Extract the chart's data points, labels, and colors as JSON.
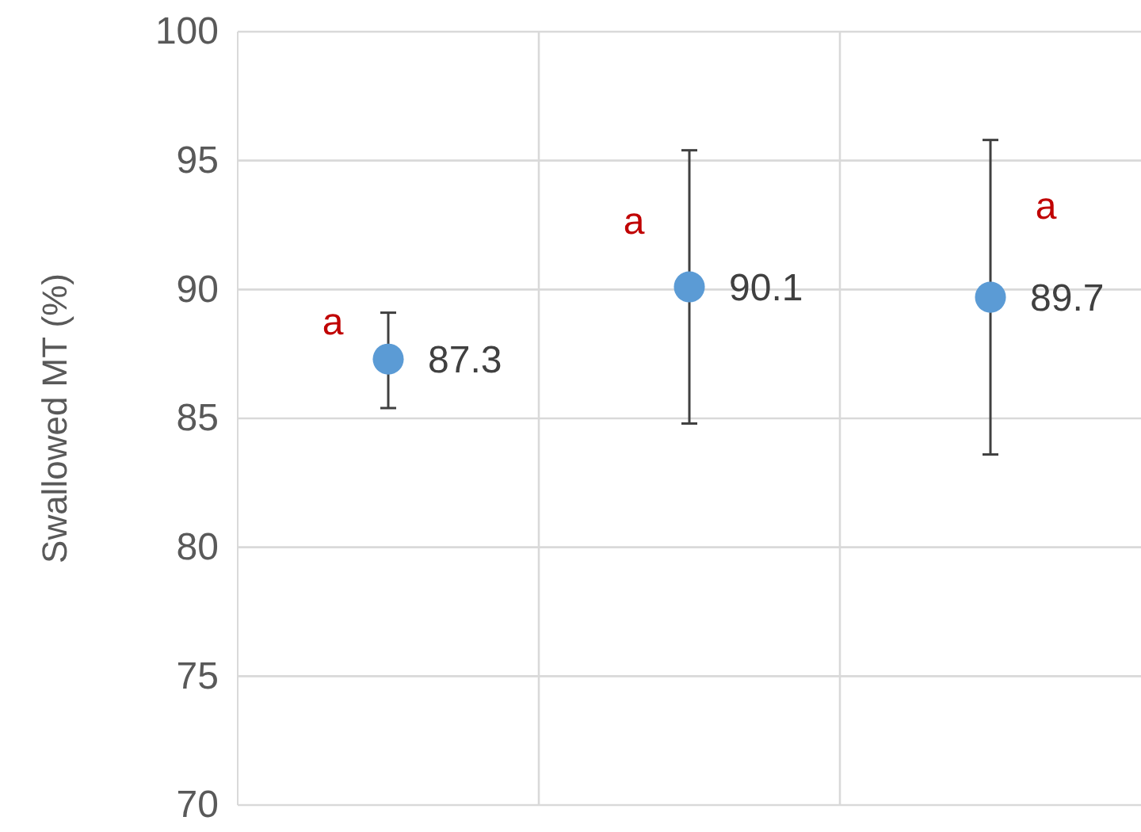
{
  "chart_data": {
    "type": "scatter",
    "ylabel": "Swallowed MT (%)",
    "categories": [
      null,
      null,
      null
    ],
    "series": [
      {
        "color": "#5b9bd5",
        "values": [
          87.3,
          90.1,
          89.7
        ],
        "errors": [
          [
            85.4,
            89.1
          ],
          [
            84.8,
            95.4
          ],
          [
            83.6,
            95.8
          ]
        ]
      }
    ],
    "ylim": [
      70,
      100
    ],
    "yticks": [
      70,
      75,
      80,
      85,
      90,
      95,
      100
    ],
    "tick_labels": "y",
    "grid": true,
    "marker": "circle",
    "data_labels": true,
    "annotations": [
      "a",
      "a",
      "a"
    ]
  }
}
